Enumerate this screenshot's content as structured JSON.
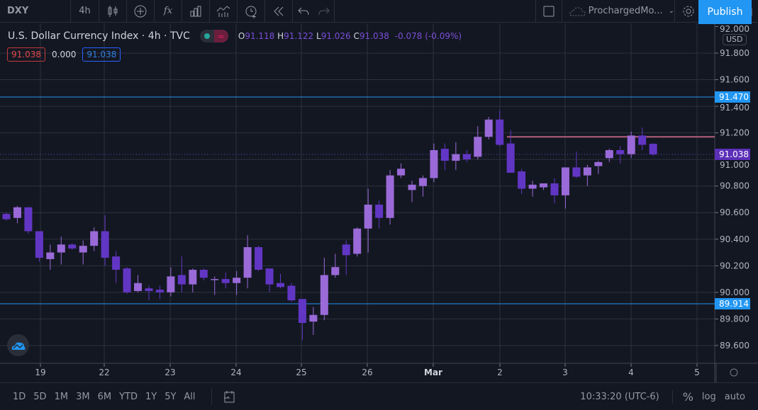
{
  "toolbar": {
    "symbol": "DXY",
    "interval": "4h",
    "icons": [
      "candles-icon",
      "add-symbol-icon",
      "indicators-fx-icon",
      "bar-chart-icon",
      "templates-icon",
      "alert-icon",
      "replay-icon",
      "undo-icon",
      "redo-icon"
    ],
    "layout_name": "ProchargedMo...",
    "publish_label": "Publish"
  },
  "legend": {
    "title": "U.S. Dollar Currency Index · 4h · TVC",
    "o_label": "O",
    "o": "91.118",
    "h_label": "H",
    "h": "91.122",
    "l_label": "L",
    "l": "91.026",
    "c_label": "C",
    "c": "91.038",
    "change": "-0.078 (-0.09%)"
  },
  "indicator_values": {
    "left": "91.038",
    "mid": "0.000",
    "right": "91.038"
  },
  "price_axis": {
    "currency": "USD",
    "ticks": [
      "92.000",
      "91.800",
      "91.600",
      "91.400",
      "91.200",
      "91.000",
      "90.800",
      "90.600",
      "90.400",
      "90.200",
      "90.000",
      "89.800",
      "89.600"
    ],
    "tags": [
      {
        "label": "91.470",
        "value": 91.47,
        "color": "#2196f3"
      },
      {
        "label": "91.038",
        "value": 91.038,
        "color": "#5b2fb8"
      },
      {
        "label": "89.914",
        "value": 89.914,
        "color": "#2196f3"
      }
    ]
  },
  "time_axis": {
    "ticks": [
      "19",
      "22",
      "23",
      "24",
      "25",
      "26",
      "Mar",
      "2",
      "3",
      "4",
      "5"
    ]
  },
  "bottom": {
    "ranges": [
      "1D",
      "5D",
      "1M",
      "3M",
      "6M",
      "YTD",
      "1Y",
      "5Y",
      "All"
    ],
    "clock": "10:33:20 (UTC-6)",
    "percent": "%",
    "log": "log",
    "auto": "auto"
  },
  "colors": {
    "up": "#9a6ad8",
    "down": "#6236c4",
    "horizontal_line": "#2196f3",
    "resistance_line": "#b5607c",
    "accent": "#2196f3"
  },
  "chart_data": {
    "type": "candlestick",
    "ylim": [
      89.5,
      92.0
    ],
    "horizontal_lines": [
      91.47,
      89.914
    ],
    "ray_line": 91.17,
    "ohlc": [
      [
        90.59,
        90.6,
        90.54,
        90.55
      ],
      [
        90.56,
        90.65,
        90.52,
        90.64
      ],
      [
        90.64,
        90.64,
        90.44,
        90.46
      ],
      [
        90.46,
        90.46,
        90.23,
        90.26
      ],
      [
        90.25,
        90.36,
        90.17,
        90.3
      ],
      [
        90.3,
        90.42,
        90.21,
        90.36
      ],
      [
        90.36,
        90.37,
        90.32,
        90.33
      ],
      [
        90.3,
        90.39,
        90.21,
        90.35
      ],
      [
        90.35,
        90.49,
        90.31,
        90.46
      ],
      [
        90.46,
        90.58,
        90.2,
        90.26
      ],
      [
        90.27,
        90.31,
        90.07,
        90.17
      ],
      [
        90.18,
        90.19,
        89.99,
        90.0
      ],
      [
        90.01,
        90.13,
        90.0,
        90.07
      ],
      [
        90.03,
        90.05,
        89.94,
        90.01
      ],
      [
        90.02,
        90.05,
        89.95,
        90.0
      ],
      [
        90.0,
        90.19,
        89.97,
        90.12
      ],
      [
        90.13,
        90.27,
        90.0,
        90.06
      ],
      [
        90.06,
        90.18,
        90.0,
        90.17
      ],
      [
        90.17,
        90.18,
        90.09,
        90.11
      ],
      [
        90.1,
        90.12,
        89.98,
        90.1
      ],
      [
        90.1,
        90.15,
        90.03,
        90.07
      ],
      [
        90.07,
        90.16,
        89.98,
        90.11
      ],
      [
        90.11,
        90.43,
        90.03,
        90.34
      ],
      [
        90.34,
        90.35,
        90.16,
        90.17
      ],
      [
        90.18,
        90.18,
        90.0,
        90.06
      ],
      [
        90.07,
        90.14,
        90.03,
        90.04
      ],
      [
        90.05,
        90.07,
        89.93,
        89.94
      ],
      [
        89.95,
        89.95,
        89.64,
        89.77
      ],
      [
        89.78,
        89.89,
        89.68,
        89.83
      ],
      [
        89.83,
        90.26,
        89.79,
        90.13
      ],
      [
        90.13,
        90.29,
        90.11,
        90.19
      ],
      [
        90.36,
        90.39,
        90.13,
        90.28
      ],
      [
        90.29,
        90.49,
        90.27,
        90.48
      ],
      [
        90.48,
        90.78,
        90.3,
        90.66
      ],
      [
        90.66,
        90.69,
        90.48,
        90.56
      ],
      [
        90.56,
        90.92,
        90.51,
        90.88
      ],
      [
        90.88,
        90.97,
        90.86,
        90.93
      ],
      [
        90.77,
        90.84,
        90.68,
        90.81
      ],
      [
        90.8,
        90.88,
        90.72,
        90.86
      ],
      [
        90.86,
        91.12,
        90.83,
        91.07
      ],
      [
        91.08,
        91.12,
        90.92,
        90.99
      ],
      [
        90.99,
        91.13,
        90.92,
        91.04
      ],
      [
        91.04,
        91.07,
        90.98,
        91.0
      ],
      [
        91.02,
        91.25,
        91.0,
        91.17
      ],
      [
        91.17,
        91.32,
        91.15,
        91.3
      ],
      [
        91.3,
        91.37,
        91.1,
        91.11
      ],
      [
        91.12,
        91.22,
        90.9,
        90.9
      ],
      [
        90.91,
        90.93,
        90.74,
        90.78
      ],
      [
        90.78,
        90.84,
        90.72,
        90.81
      ],
      [
        90.79,
        90.82,
        90.77,
        90.82
      ],
      [
        90.82,
        90.86,
        90.67,
        90.73
      ],
      [
        90.73,
        90.94,
        90.63,
        90.94
      ],
      [
        90.94,
        91.06,
        90.86,
        90.87
      ],
      [
        90.88,
        90.96,
        90.8,
        90.94
      ],
      [
        90.95,
        90.99,
        90.89,
        90.98
      ],
      [
        91.01,
        91.08,
        90.98,
        91.07
      ],
      [
        91.07,
        91.1,
        90.97,
        91.04
      ],
      [
        91.04,
        91.21,
        91.01,
        91.18
      ],
      [
        91.18,
        91.24,
        91.07,
        91.11
      ],
      [
        91.118,
        91.122,
        91.026,
        91.038
      ]
    ]
  }
}
